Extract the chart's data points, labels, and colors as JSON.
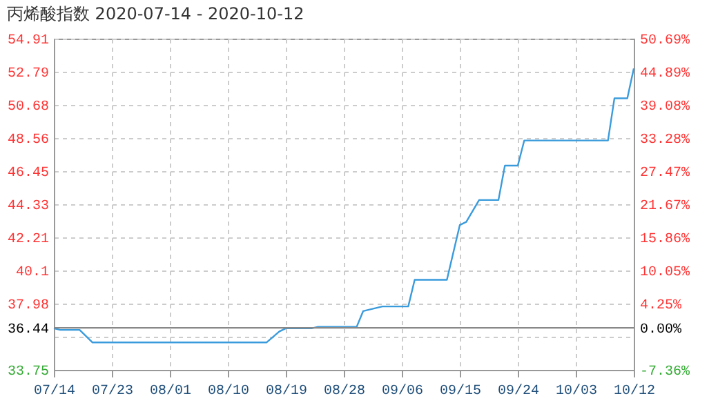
{
  "chart_data": {
    "type": "line",
    "title": "丙烯酸指数 2020-07-14 - 2020-10-12",
    "x": [
      "2020-07-14",
      "2020-07-15",
      "2020-07-18",
      "2020-07-20",
      "2020-08-16",
      "2020-08-18",
      "2020-08-19",
      "2020-08-23",
      "2020-08-24",
      "2020-08-30",
      "2020-08-31",
      "2020-09-03",
      "2020-09-07",
      "2020-09-08",
      "2020-09-13",
      "2020-09-15",
      "2020-09-16",
      "2020-09-18",
      "2020-09-21",
      "2020-09-22",
      "2020-09-24",
      "2020-09-25",
      "2020-10-08",
      "2020-10-09",
      "2020-10-11",
      "2020-10-12"
    ],
    "series": [
      {
        "color": "#3a9bdc",
        "values": [
          36.4,
          36.3,
          36.3,
          35.5,
          35.5,
          36.2,
          36.4,
          36.4,
          36.5,
          36.5,
          37.5,
          37.8,
          37.8,
          39.5,
          39.5,
          43.0,
          43.2,
          44.6,
          44.6,
          46.8,
          46.8,
          48.4,
          48.4,
          51.1,
          51.1,
          53.0
        ]
      }
    ],
    "xlim": [
      "2020-07-14",
      "2020-10-12"
    ],
    "xticks": [
      {
        "value": "2020-07-14",
        "label": "07/14"
      },
      {
        "value": "2020-07-23",
        "label": "07/23"
      },
      {
        "value": "2020-08-01",
        "label": "08/01"
      },
      {
        "value": "2020-08-10",
        "label": "08/10"
      },
      {
        "value": "2020-08-19",
        "label": "08/19"
      },
      {
        "value": "2020-08-28",
        "label": "08/28"
      },
      {
        "value": "2020-09-06",
        "label": "09/06"
      },
      {
        "value": "2020-09-15",
        "label": "09/15"
      },
      {
        "value": "2020-09-24",
        "label": "09/24"
      },
      {
        "value": "2020-10-03",
        "label": "10/03"
      },
      {
        "value": "2020-10-12",
        "label": "10/12"
      }
    ],
    "ylim": [
      33.75,
      54.91
    ],
    "yticks": [
      33.75,
      {
        "value": 35.86,
        "label": null
      },
      36.44,
      37.98,
      40.1,
      42.21,
      44.33,
      46.45,
      48.56,
      50.68,
      52.79,
      54.91
    ],
    "y2lim": [
      -7.36,
      50.69
    ],
    "y2ticks": [
      {
        "value": -7.36,
        "label": "-7.36%"
      },
      {
        "value": -1.55,
        "label": null
      },
      {
        "value": 0,
        "label": "0.00%"
      },
      {
        "value": 4.25,
        "label": "4.25%"
      },
      {
        "value": 10.05,
        "label": "10.05%"
      },
      {
        "value": 15.86,
        "label": "15.86%"
      },
      {
        "value": 21.67,
        "label": "21.67%"
      },
      {
        "value": 27.47,
        "label": "27.47%"
      },
      {
        "value": 33.28,
        "label": "33.28%"
      },
      {
        "value": 39.08,
        "label": "39.08%"
      },
      {
        "value": 44.89,
        "label": "44.89%"
      },
      {
        "value": 50.69,
        "label": "50.69%"
      }
    ],
    "ref_lines": [
      {
        "axis": "y2",
        "value": 0,
        "color": "#888888"
      }
    ],
    "grid": true,
    "marker": "none",
    "line_style": "solid"
  }
}
